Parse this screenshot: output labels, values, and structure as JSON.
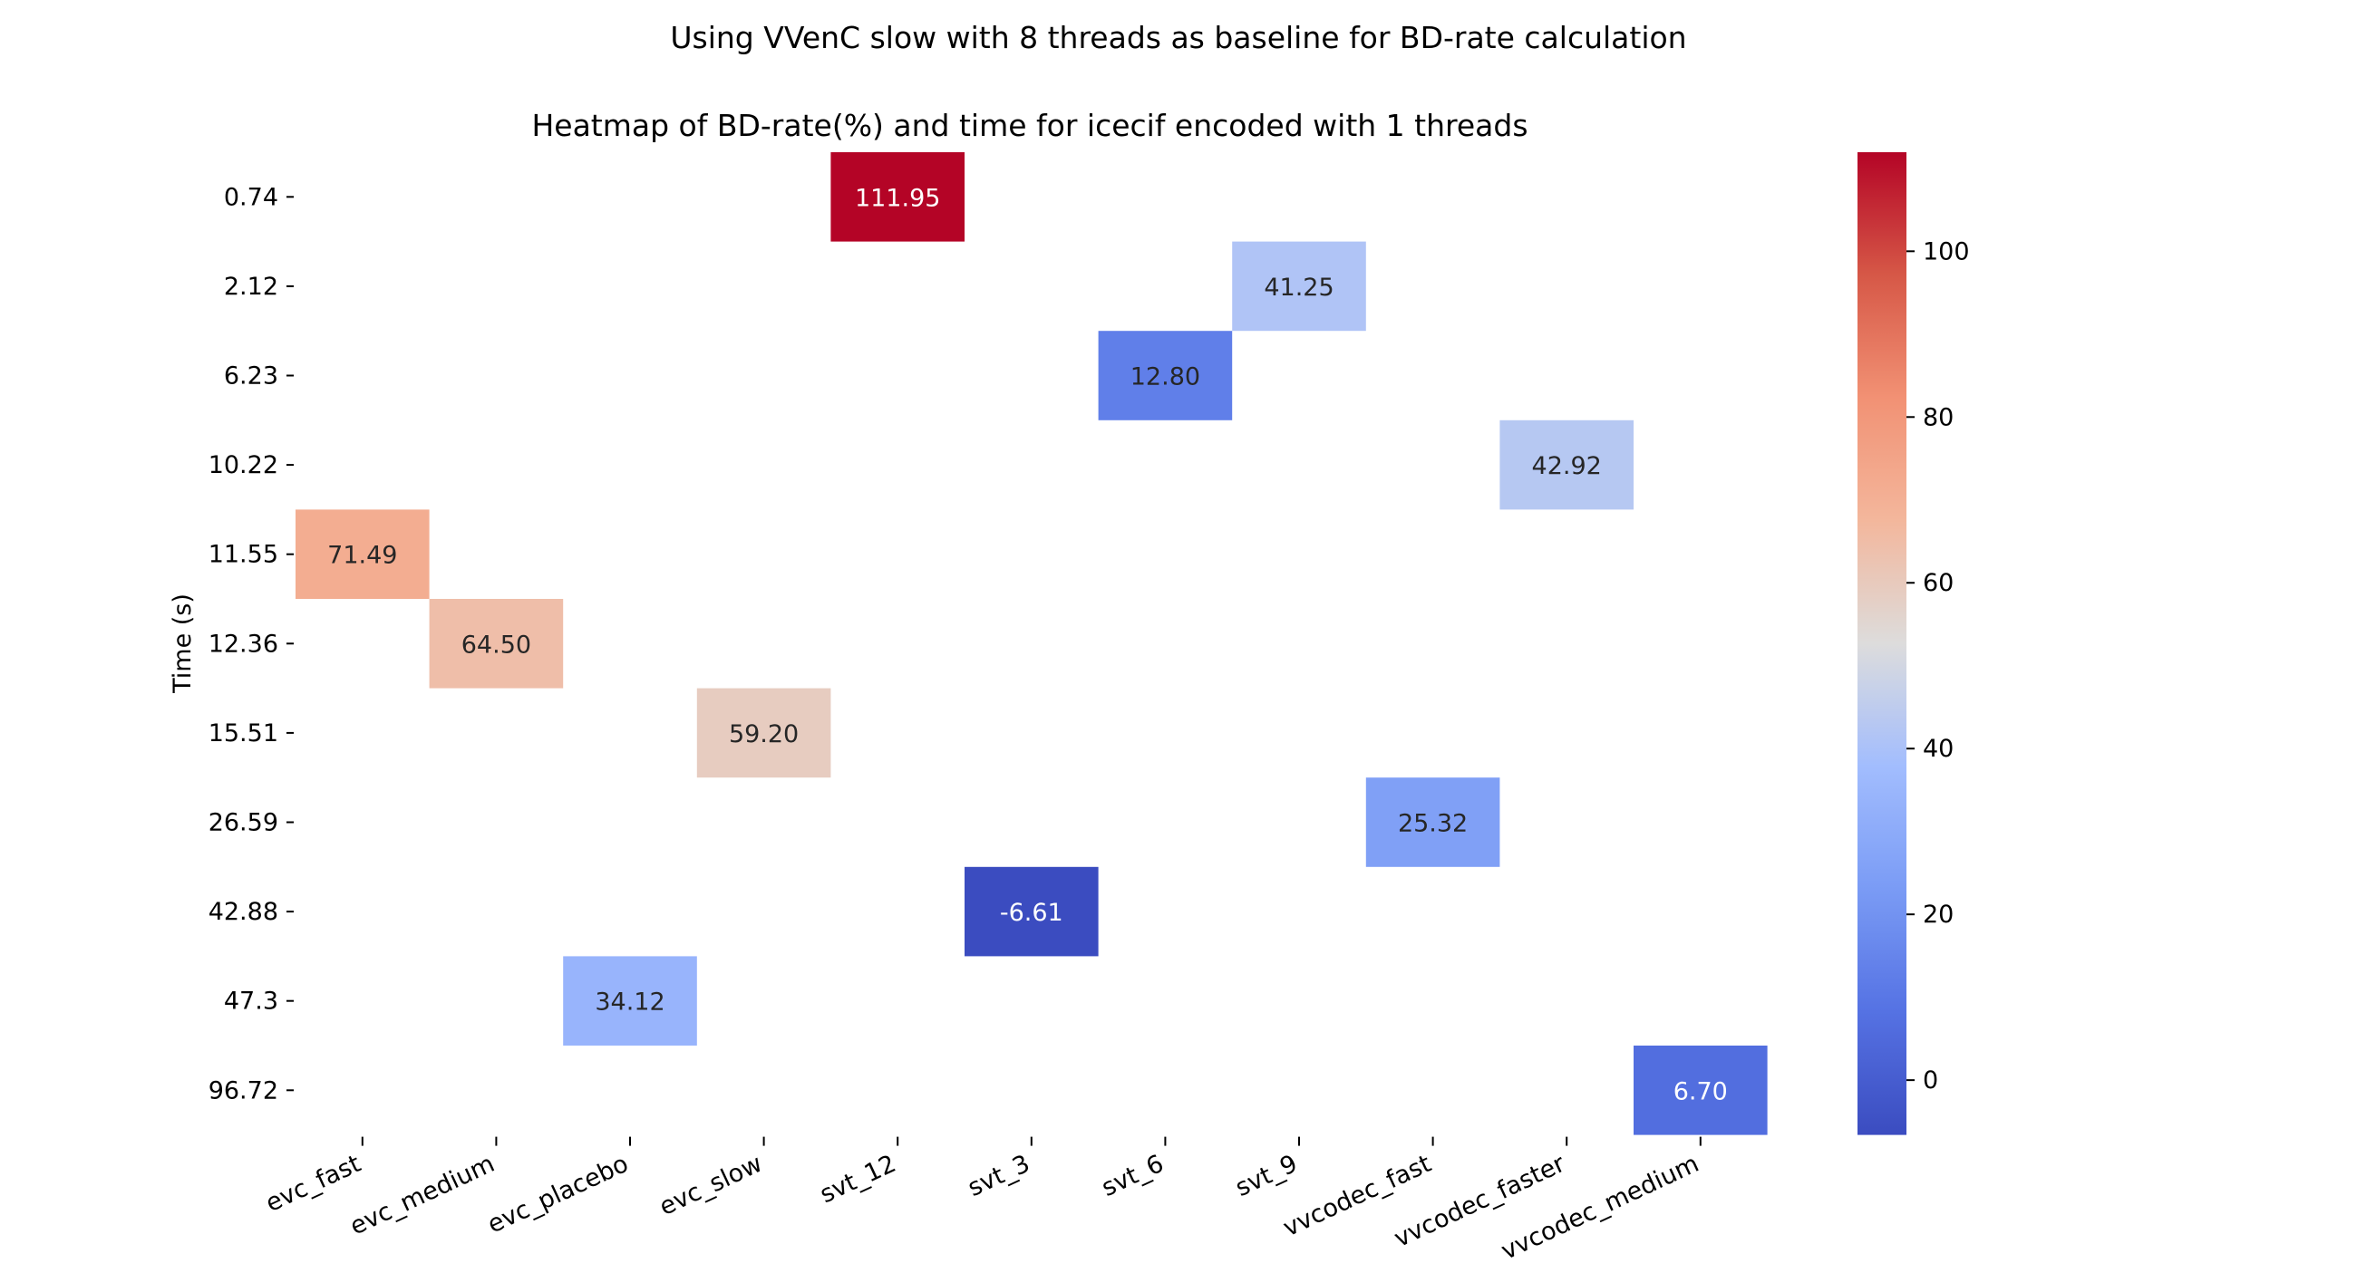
{
  "chart_data": {
    "type": "heatmap",
    "suptitle": "Using VVenC slow with 8 threads as baseline for BD-rate calculation",
    "title": "Heatmap of BD-rate(%) and time for icecif encoded with 1 threads",
    "xlabel": "",
    "ylabel": "Time (s)",
    "x_categories": [
      "evc_fast",
      "evc_medium",
      "evc_placebo",
      "evc_slow",
      "svt_12",
      "svt_3",
      "svt_6",
      "svt_9",
      "vvcodec_fast",
      "vvcodec_faster",
      "vvcodec_medium"
    ],
    "y_categories": [
      "0.74",
      "2.12",
      "6.23",
      "10.22",
      "11.55",
      "12.36",
      "15.51",
      "26.59",
      "42.88",
      "47.3",
      "96.72"
    ],
    "cells": [
      {
        "x": "svt_12",
        "y": "0.74",
        "value": 111.95,
        "label": "111.95"
      },
      {
        "x": "svt_9",
        "y": "2.12",
        "value": 41.25,
        "label": "41.25"
      },
      {
        "x": "svt_6",
        "y": "6.23",
        "value": 12.8,
        "label": "12.80"
      },
      {
        "x": "vvcodec_faster",
        "y": "10.22",
        "value": 42.92,
        "label": "42.92"
      },
      {
        "x": "evc_fast",
        "y": "11.55",
        "value": 71.49,
        "label": "71.49"
      },
      {
        "x": "evc_medium",
        "y": "12.36",
        "value": 64.5,
        "label": "64.50"
      },
      {
        "x": "evc_slow",
        "y": "15.51",
        "value": 59.2,
        "label": "59.20"
      },
      {
        "x": "vvcodec_fast",
        "y": "26.59",
        "value": 25.32,
        "label": "25.32"
      },
      {
        "x": "svt_3",
        "y": "42.88",
        "value": -6.61,
        "label": "-6.61"
      },
      {
        "x": "evc_placebo",
        "y": "47.3",
        "value": 34.12,
        "label": "34.12"
      },
      {
        "x": "vvcodec_medium",
        "y": "96.72",
        "value": 6.7,
        "label": "6.70"
      }
    ],
    "colorbar": {
      "colormap": "coolwarm",
      "vmin": -6.61,
      "vmax": 111.95,
      "ticks": [
        0,
        20,
        40,
        60,
        80,
        100
      ],
      "tick_labels": [
        "0",
        "20",
        "40",
        "60",
        "80",
        "100"
      ]
    },
    "grid": false
  }
}
